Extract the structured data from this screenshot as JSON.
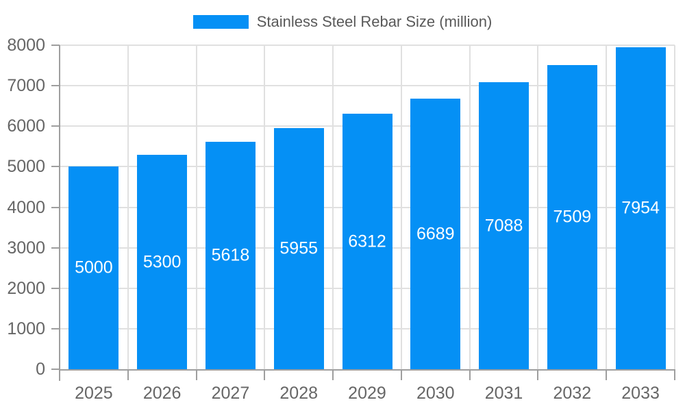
{
  "chart_data": {
    "type": "bar",
    "title": "",
    "legend_label": "Stainless Steel Rebar Size (million)",
    "legend_position": "top",
    "categories": [
      "2025",
      "2026",
      "2027",
      "2028",
      "2029",
      "2030",
      "2031",
      "2032",
      "2033"
    ],
    "series": [
      {
        "name": "Stainless Steel Rebar Size (million)",
        "values": [
          5000,
          5300,
          5618,
          5955,
          6312,
          6689,
          7088,
          7509,
          7954
        ]
      }
    ],
    "xlabel": "",
    "ylabel": "",
    "ylim": [
      0,
      8000
    ],
    "ytick_step": 1000,
    "yticks": [
      "0",
      "1000",
      "2000",
      "3000",
      "4000",
      "5000",
      "6000",
      "7000",
      "8000"
    ],
    "grid": true,
    "value_labels": "inside-center",
    "colors": {
      "bar": "#0590f5",
      "grid": "#e0e0e0",
      "axis": "#9e9e9e",
      "tick_text": "#666666",
      "legend_text": "#595959",
      "value_label_text": "#ffffff",
      "background": "#ffffff"
    }
  }
}
